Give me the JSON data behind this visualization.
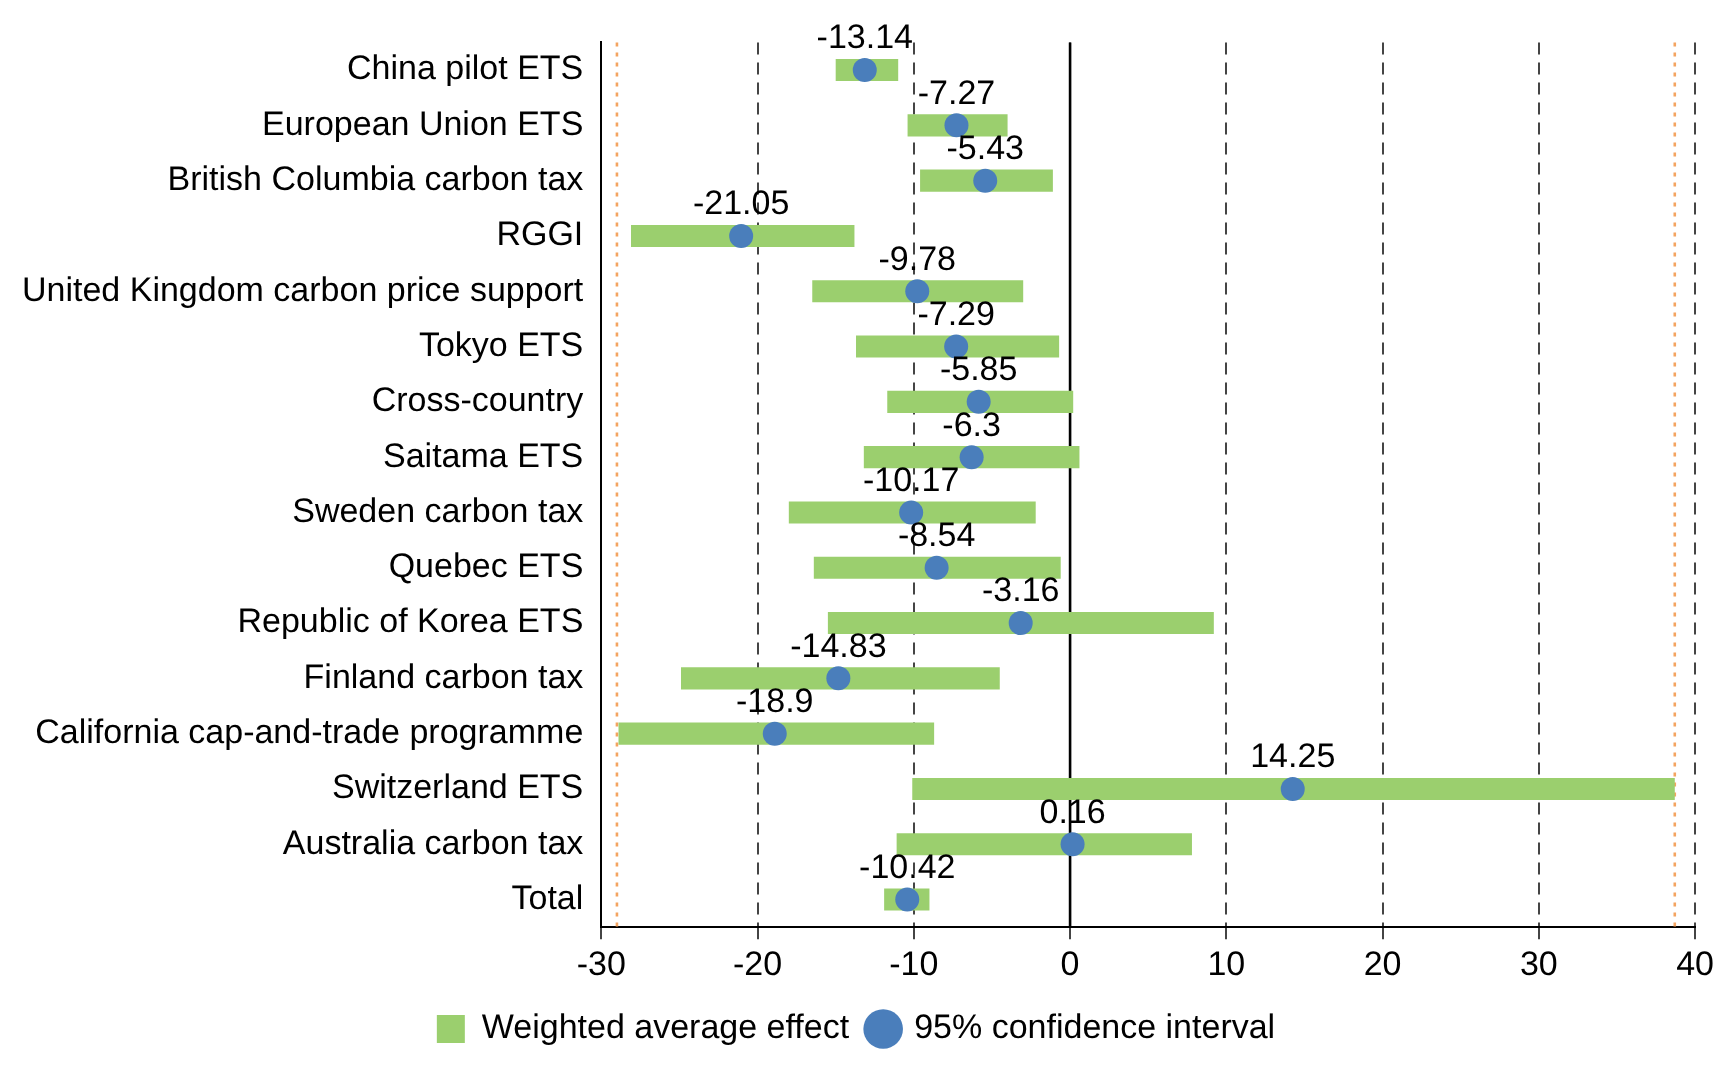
{
  "chart_data": {
    "type": "bar",
    "orientation": "horizontal",
    "categories": [
      "China pilot ETS",
      "European Union ETS",
      "British Columbia carbon tax",
      "RGGI",
      "United Kingdom carbon price support",
      "Tokyo ETS",
      "Cross-country",
      "Saitama ETS",
      "Sweden carbon tax",
      "Quebec ETS",
      "Republic of Korea ETS",
      "Finland carbon tax",
      "California cap-and-trade programme",
      "Switzerland ETS",
      "Australia carbon tax",
      "Total"
    ],
    "series": [
      {
        "name": "Weighted average effect",
        "color": "#9bcf6e",
        "base": [
          -15.0,
          -10.4,
          -9.6,
          -28.1,
          -16.5,
          -13.7,
          -11.7,
          -13.2,
          -18.0,
          -16.4,
          -15.5,
          -24.9,
          -28.9,
          -10.1,
          -11.1,
          -11.9
        ],
        "values": [
          4.0,
          6.4,
          8.5,
          14.3,
          13.5,
          13.0,
          11.9,
          13.8,
          15.8,
          15.8,
          24.7,
          20.4,
          20.2,
          48.8,
          18.9,
          2.9
        ]
      },
      {
        "name": "95% confidence interval",
        "type": "scatter",
        "color": "#4a7ebb",
        "values": [
          -13.14,
          -7.27,
          -5.43,
          -21.05,
          -9.78,
          -7.29,
          -5.85,
          -6.3,
          -10.17,
          -8.54,
          -3.16,
          -14.83,
          -18.9,
          14.25,
          0.16,
          -10.42
        ],
        "value_labels": [
          "-13.14",
          "-7.27",
          "-5.43",
          "-21.05",
          "-9.78",
          "-7.29",
          "-5.85",
          "-6.3",
          "-10.17",
          "-8.54",
          "-3.16",
          "-14.83",
          "-18.9",
          "14.25",
          "0.16",
          "-10.42"
        ]
      }
    ],
    "xlim": [
      -30,
      40
    ],
    "xticks": [
      -30,
      -20,
      -10,
      0,
      10,
      20,
      30,
      40
    ],
    "grid": "x",
    "legend": "bottom",
    "marker": "circle",
    "ref_lines": [
      {
        "axis": "x",
        "value": 0,
        "color": "#000000",
        "line_style": "solid"
      },
      {
        "axis": "x",
        "value": -29,
        "color": "#f4a460",
        "line_style": "dotted"
      },
      {
        "axis": "x",
        "value": 38.7,
        "color": "#f4a460",
        "line_style": "dotted"
      }
    ]
  }
}
